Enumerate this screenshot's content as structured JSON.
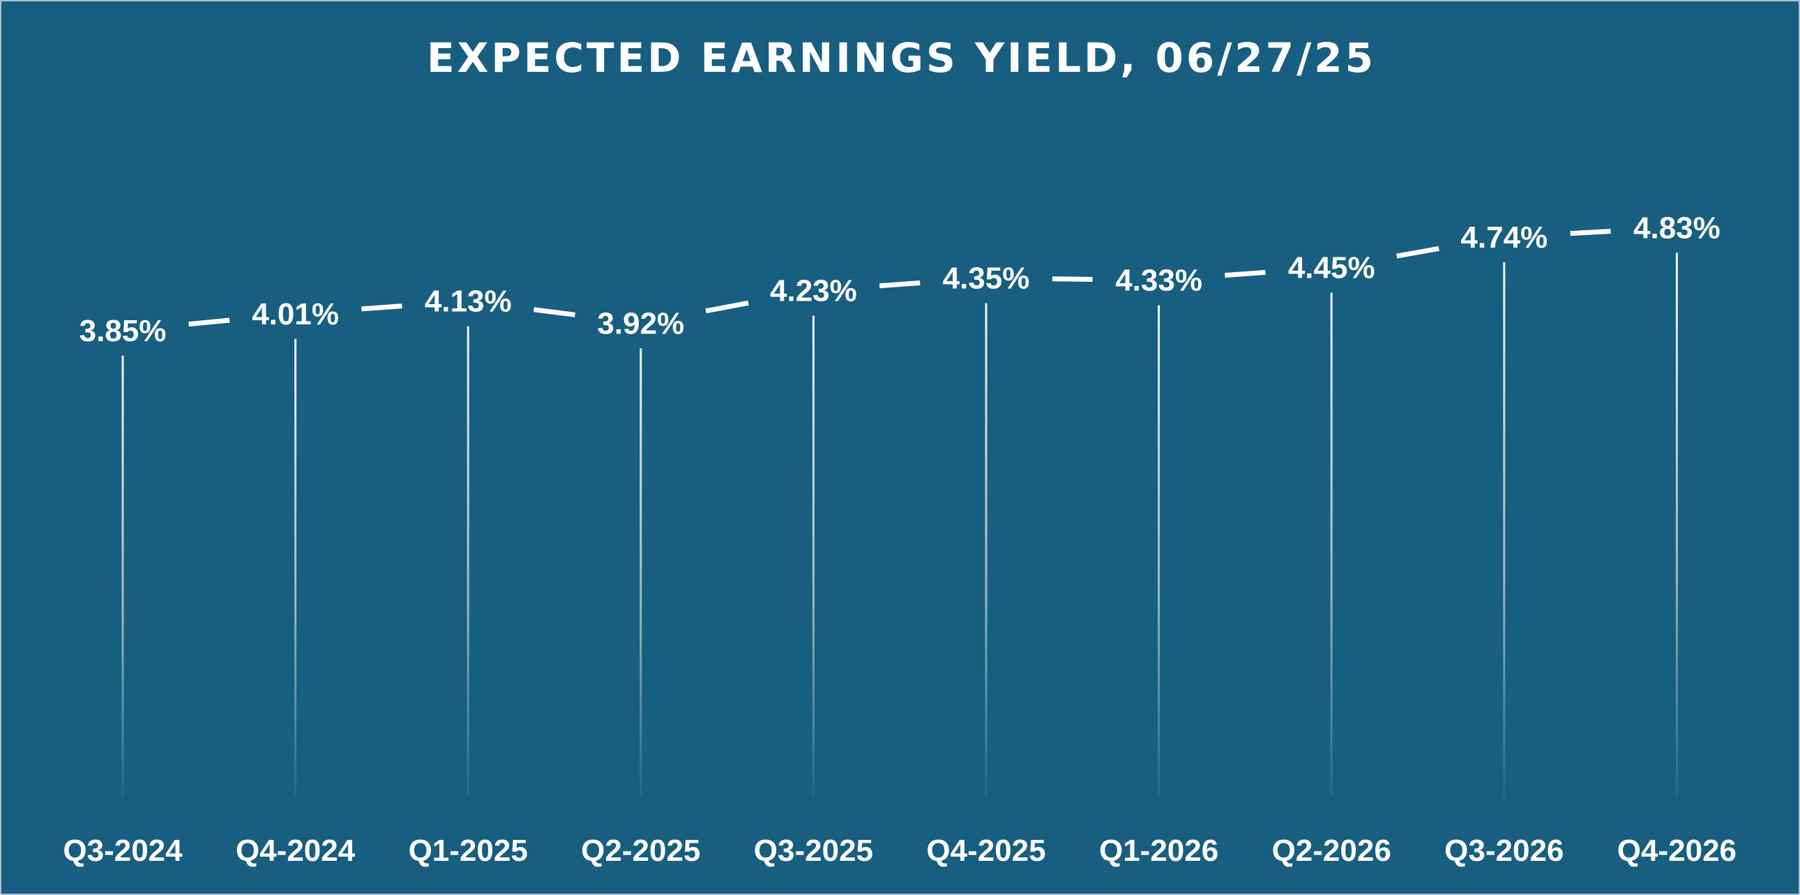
{
  "colors": {
    "background": "#175e80",
    "line": "#ffffff",
    "text": "#ffffff"
  },
  "chart_data": {
    "type": "line",
    "title": "EXPECTED EARNINGS YIELD, 06/27/25",
    "categories": [
      "Q3-2024",
      "Q4-2024",
      "Q1-2025",
      "Q2-2025",
      "Q3-2025",
      "Q4-2025",
      "Q1-2026",
      "Q2-2026",
      "Q3-2026",
      "Q4-2026"
    ],
    "values": [
      3.85,
      4.01,
      4.13,
      3.92,
      4.23,
      4.35,
      4.33,
      4.45,
      4.74,
      4.83
    ],
    "data_labels": [
      "3.85%",
      "4.01%",
      "4.13%",
      "3.92%",
      "4.23%",
      "4.35%",
      "4.33%",
      "4.45%",
      "4.74%",
      "4.83%"
    ],
    "value_unit": "%",
    "drop_lines": true,
    "grid": false,
    "legend": "none",
    "y_axis_visible": false
  }
}
